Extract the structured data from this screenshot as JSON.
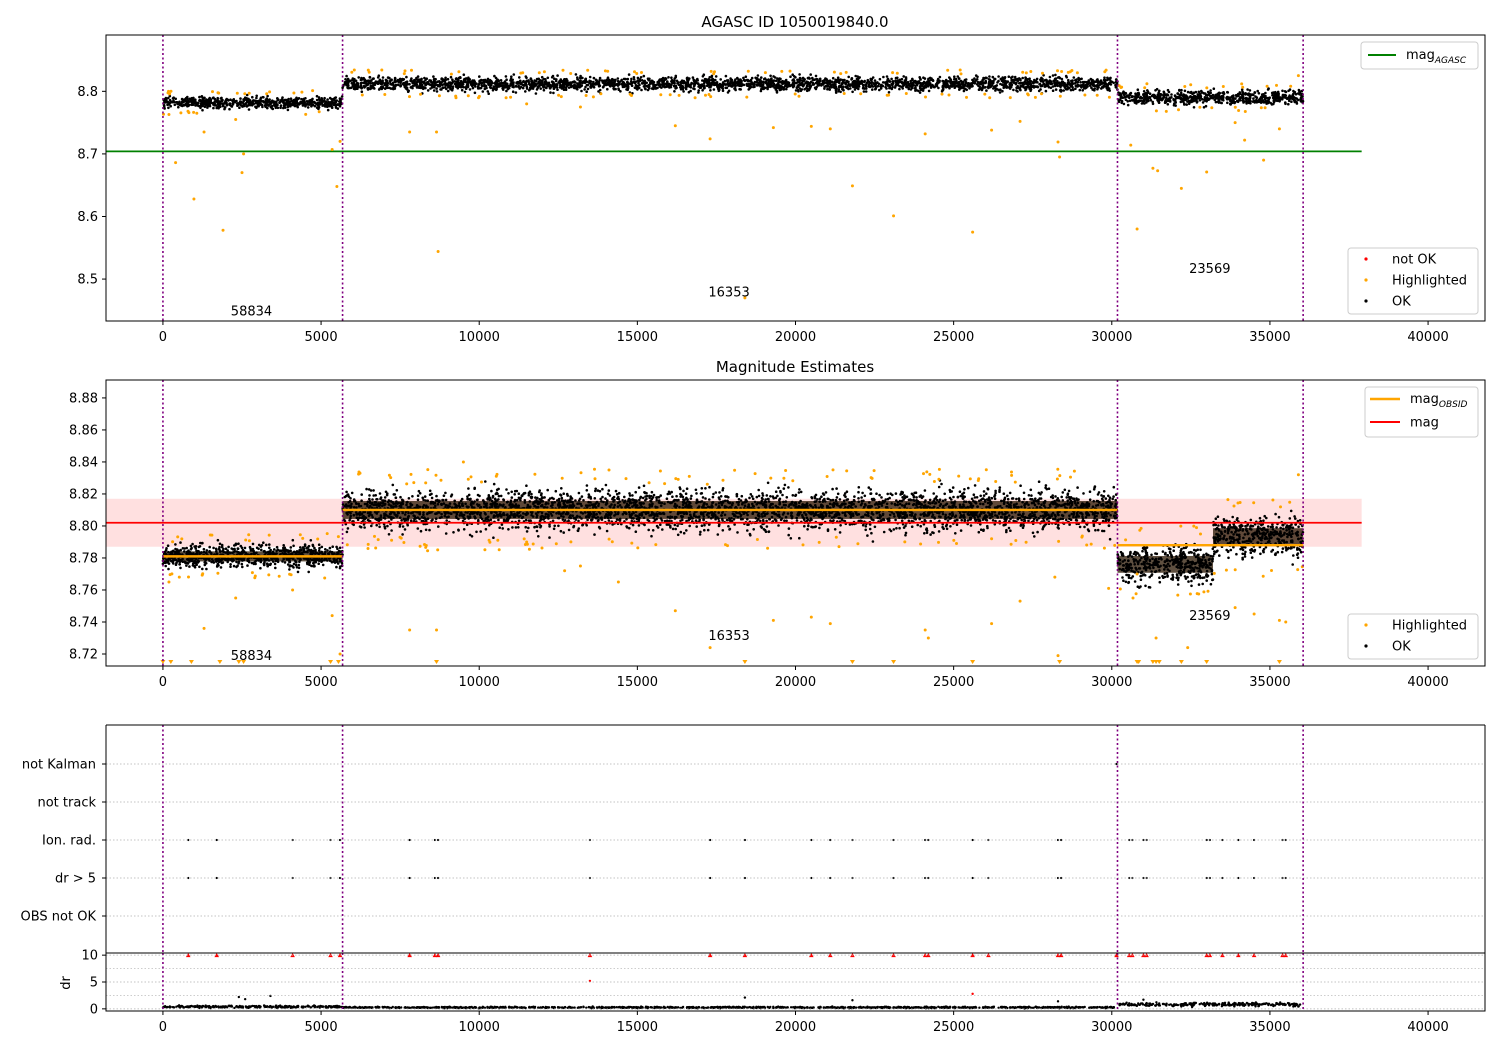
{
  "chart_data": [
    {
      "type": "scatter",
      "title": "AGASC ID 1050019840.0",
      "xlim": [
        -1800,
        41800
      ],
      "ylim": [
        8.433,
        8.89
      ],
      "xticks": [
        0,
        5000,
        10000,
        15000,
        20000,
        25000,
        30000,
        35000,
        40000
      ],
      "yticks": [
        8.5,
        8.6,
        8.7,
        8.8
      ],
      "boundaries": [
        0,
        5680,
        30180,
        36050
      ],
      "obsid_labels": [
        {
          "text": "58834",
          "x": 2800,
          "y": 8.45
        },
        {
          "text": "16353",
          "x": 17900,
          "y": 8.48
        },
        {
          "text": "23569",
          "x": 33100,
          "y": 8.518
        }
      ],
      "hlines": [
        {
          "name": "mag_AGASC",
          "value": 8.704,
          "x": [
            -1800,
            37900
          ],
          "color": "#008000"
        }
      ],
      "bands": [
        {
          "x": [
            0,
            5680
          ],
          "center": 8.782,
          "half": 0.012
        },
        {
          "x": [
            5680,
            30180
          ],
          "center": 8.812,
          "half": 0.014
        },
        {
          "x": [
            30180,
            36050
          ],
          "center": 8.79,
          "half": 0.014
        }
      ],
      "series": [
        {
          "name": "not OK",
          "color": "#ff0000"
        },
        {
          "name": "Highlighted",
          "color": "#ffa500",
          "points": [
            [
              190,
              8.763
            ],
            [
              400,
              8.686
            ],
            [
              980,
              8.628
            ],
            [
              1300,
              8.735
            ],
            [
              1900,
              8.578
            ],
            [
              2300,
              8.755
            ],
            [
              2500,
              8.67
            ],
            [
              2550,
              8.7
            ],
            [
              5350,
              8.707
            ],
            [
              5500,
              8.648
            ],
            [
              5600,
              8.72
            ],
            [
              8700,
              8.544
            ],
            [
              8650,
              8.735
            ],
            [
              7800,
              8.735
            ],
            [
              11500,
              8.78
            ],
            [
              13200,
              8.775
            ],
            [
              16200,
              8.745
            ],
            [
              17300,
              8.724
            ],
            [
              18400,
              8.47
            ],
            [
              19300,
              8.742
            ],
            [
              20500,
              8.744
            ],
            [
              21100,
              8.74
            ],
            [
              21800,
              8.649
            ],
            [
              23100,
              8.601
            ],
            [
              24100,
              8.732
            ],
            [
              25600,
              8.575
            ],
            [
              26200,
              8.738
            ],
            [
              27100,
              8.752
            ],
            [
              28300,
              8.719
            ],
            [
              28350,
              8.695
            ],
            [
              30600,
              8.714
            ],
            [
              30800,
              8.58
            ],
            [
              31300,
              8.677
            ],
            [
              31450,
              8.673
            ],
            [
              32200,
              8.645
            ],
            [
              33000,
              8.671
            ],
            [
              33900,
              8.75
            ],
            [
              34200,
              8.722
            ],
            [
              34800,
              8.69
            ],
            [
              35300,
              8.74
            ],
            [
              35900,
              8.825
            ]
          ]
        },
        {
          "name": "OK",
          "color": "#000000"
        }
      ]
    },
    {
      "type": "scatter",
      "title": "Magnitude Estimates",
      "xlim": [
        -1800,
        41800
      ],
      "ylim": [
        8.7125,
        8.8912
      ],
      "xticks": [
        0,
        5000,
        10000,
        15000,
        20000,
        25000,
        30000,
        35000,
        40000
      ],
      "yticks": [
        8.72,
        8.74,
        8.76,
        8.78,
        8.8,
        8.82,
        8.84,
        8.86,
        8.88
      ],
      "boundaries": [
        0,
        5680,
        30180,
        36050
      ],
      "obsid_labels": [
        {
          "text": "58834",
          "x": 2800,
          "y": 8.7195
        },
        {
          "text": "16353",
          "x": 17900,
          "y": 8.732
        },
        {
          "text": "23569",
          "x": 33100,
          "y": 8.7445
        }
      ],
      "mag": {
        "name": "mag",
        "value": 8.802,
        "band": [
          8.787,
          8.817
        ],
        "x": [
          -1800,
          37900
        ],
        "color": "#ff0000"
      },
      "mag_obsid": {
        "name": "mag_OBSID",
        "color": "#ffa500",
        "segments": [
          {
            "x": [
              0,
              5680
            ],
            "value": 8.781
          },
          {
            "x": [
              5680,
              30180
            ],
            "value": 8.81
          },
          {
            "x": [
              30180,
              36050
            ],
            "value": 8.788
          }
        ]
      },
      "bands": [
        {
          "x": [
            0,
            5680
          ],
          "center": 8.781,
          "half": 0.009
        },
        {
          "x": [
            5680,
            30180
          ],
          "center": 8.81,
          "half": 0.016
        },
        {
          "x": [
            30180,
            33200
          ],
          "center": 8.776,
          "half": 0.015
        },
        {
          "x": [
            33200,
            36050
          ],
          "center": 8.793,
          "half": 0.016
        }
      ],
      "series": [
        {
          "name": "Highlighted",
          "color": "#ffa500",
          "points": [
            [
              190,
              8.765
            ],
            [
              1300,
              8.736
            ],
            [
              2300,
              8.755
            ],
            [
              4100,
              8.76
            ],
            [
              5350,
              8.744
            ],
            [
              5600,
              8.72
            ],
            [
              7800,
              8.735
            ],
            [
              8650,
              8.735
            ],
            [
              9500,
              8.84
            ],
            [
              11500,
              8.79
            ],
            [
              12700,
              8.772
            ],
            [
              13200,
              8.775
            ],
            [
              14400,
              8.765
            ],
            [
              16200,
              8.747
            ],
            [
              17300,
              8.724
            ],
            [
              19300,
              8.741
            ],
            [
              20500,
              8.743
            ],
            [
              21100,
              8.739
            ],
            [
              24100,
              8.735
            ],
            [
              24200,
              8.73
            ],
            [
              26200,
              8.739
            ],
            [
              27100,
              8.753
            ],
            [
              28200,
              8.768
            ],
            [
              28300,
              8.719
            ],
            [
              29900,
              8.761
            ],
            [
              30800,
              8.77
            ],
            [
              31400,
              8.73
            ],
            [
              32400,
              8.724
            ],
            [
              33900,
              8.749
            ],
            [
              34500,
              8.745
            ],
            [
              35300,
              8.741
            ],
            [
              35500,
              8.74
            ],
            [
              35900,
              8.832
            ]
          ]
        },
        {
          "name": "OK",
          "color": "#000000"
        }
      ],
      "low_markers_x": [
        0,
        250,
        900,
        1800,
        2400,
        2550,
        5300,
        5550,
        8650,
        18400,
        21800,
        23100,
        25600,
        28350,
        30800,
        30850,
        31300,
        31400,
        31500,
        32200,
        33000,
        35300
      ]
    },
    {
      "type": "scatter",
      "xlim": [
        -1800,
        41800
      ],
      "categories": [
        "not Kalman",
        "not track",
        "Ion. rad.",
        "dr > 5",
        "OBS not OK"
      ],
      "boundaries": [
        0,
        5680,
        30180,
        36050
      ],
      "flag_x": [
        800,
        1700,
        4100,
        5300,
        5600,
        7800,
        8600,
        8700,
        13500,
        17300,
        18400,
        20500,
        21100,
        21800,
        23100,
        24100,
        24200,
        25600,
        26100,
        28300,
        28400,
        30550,
        30650,
        31000,
        31100,
        33000,
        33100,
        33500,
        34000,
        34500,
        35400,
        35500
      ],
      "not_kalman_x": [
        30150
      ]
    },
    {
      "type": "scatter",
      "ylabel": "dr",
      "xlim": [
        -1800,
        41800
      ],
      "ylim": [
        -0.4,
        10.4
      ],
      "xticks": [
        0,
        5000,
        10000,
        15000,
        20000,
        25000,
        30000,
        35000,
        40000
      ],
      "yticks": [
        0,
        5,
        10
      ],
      "boundaries": [
        0,
        5680,
        30180,
        36050
      ],
      "segments": [
        {
          "x": [
            0,
            5680
          ],
          "center": 0.4,
          "half": 0.3
        },
        {
          "x": [
            5680,
            30180
          ],
          "center": 0.25,
          "half": 0.2
        },
        {
          "x": [
            30180,
            36050
          ],
          "center": 0.8,
          "half": 0.5
        }
      ],
      "clipped_x": [
        800,
        1700,
        4100,
        5300,
        5600,
        7800,
        8600,
        8700,
        13500,
        17300,
        18400,
        20500,
        21100,
        21800,
        23100,
        24100,
        24200,
        25600,
        26100,
        28300,
        28400,
        30150,
        30550,
        30650,
        31000,
        31100,
        33000,
        33100,
        33500,
        34000,
        34500,
        35400,
        35500
      ],
      "red_points": [
        [
          13500,
          5.2
        ],
        [
          25600,
          2.8
        ]
      ],
      "outliers": [
        [
          2400,
          2.2
        ],
        [
          2600,
          1.8
        ],
        [
          3400,
          2.4
        ],
        [
          18400,
          2.1
        ],
        [
          21800,
          1.6
        ],
        [
          28300,
          1.4
        ],
        [
          31000,
          1.7
        ]
      ]
    }
  ]
}
